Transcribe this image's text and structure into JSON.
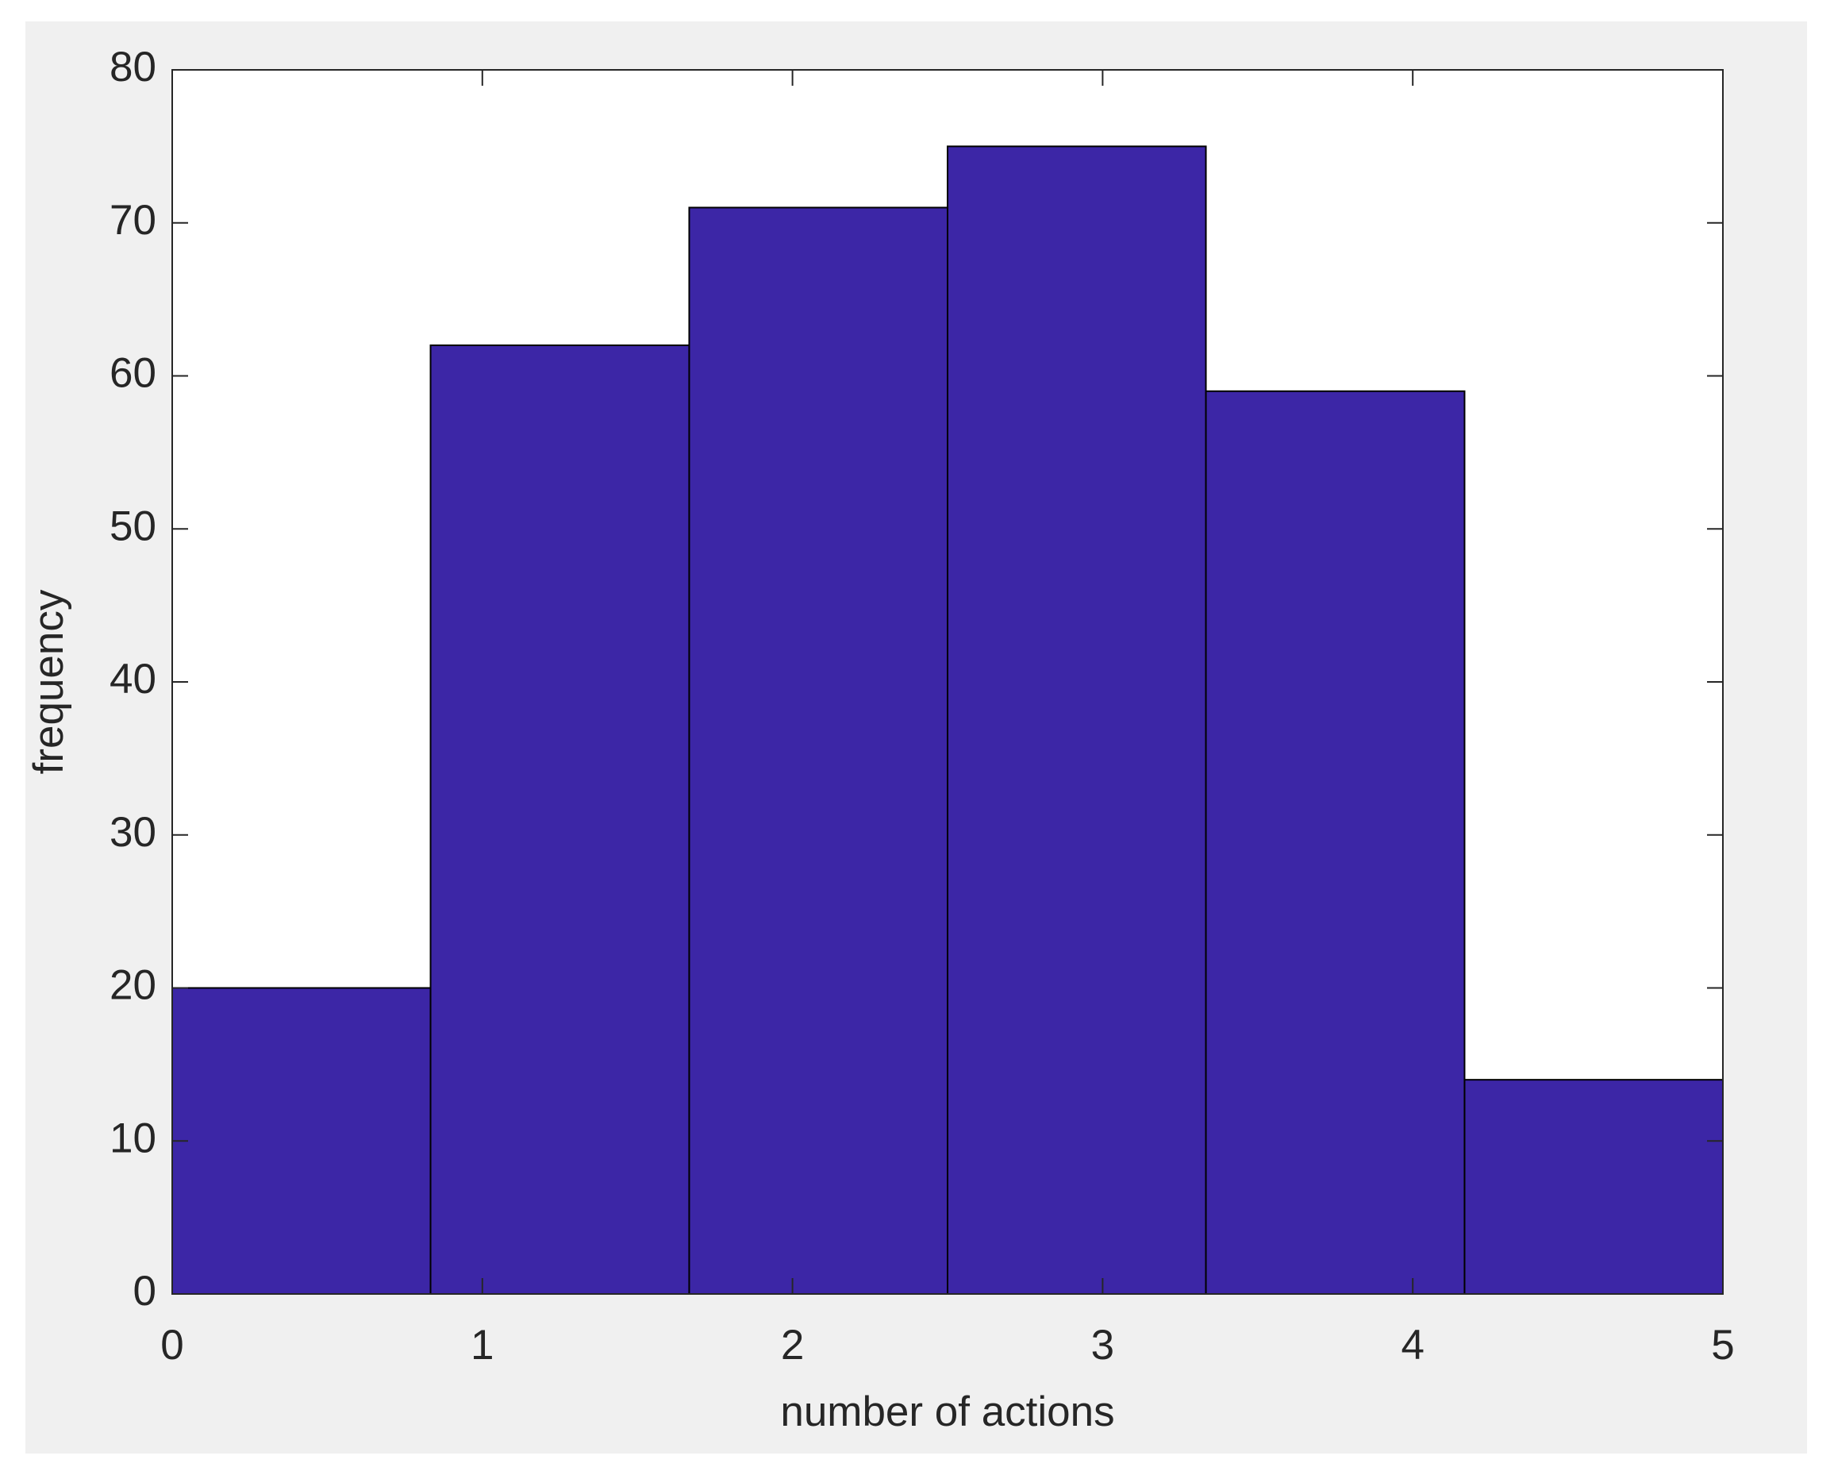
{
  "chart_data": {
    "type": "histogram",
    "xlabel": "number of actions",
    "ylabel": "frequency",
    "bins": [
      0,
      0.833,
      1.667,
      2.5,
      3.333,
      4.167,
      5
    ],
    "values": [
      20,
      62,
      71,
      75,
      59,
      14
    ],
    "color": "#3c26a6",
    "xlim": [
      0,
      5
    ],
    "xticks": [
      0,
      1,
      2,
      3,
      4,
      5
    ],
    "ylim": [
      0,
      80
    ],
    "yticks": [
      0,
      10,
      20,
      30,
      40,
      50,
      60,
      70,
      80
    ]
  }
}
